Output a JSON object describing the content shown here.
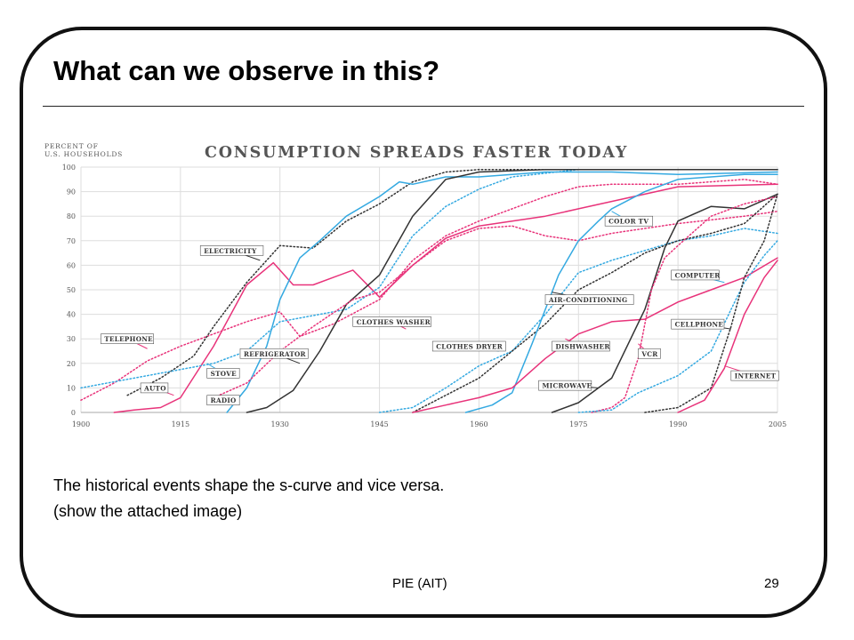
{
  "slide": {
    "title": "What can we observe in this?",
    "caption_line1": "The historical events shape the s-curve and vice versa.",
    "caption_line2": "(show the attached image)",
    "footer_source": "PIE (AIT)",
    "page_number": "29"
  },
  "chart_data": {
    "type": "line",
    "title": "CONSUMPTION SPREADS FASTER TODAY",
    "ylabel_line1": "PERCENT OF",
    "ylabel_line2": "U.S. HOUSEHOLDS",
    "xlim": [
      1900,
      2005
    ],
    "ylim": [
      0,
      100
    ],
    "x_ticks": [
      1900,
      1915,
      1930,
      1945,
      1960,
      1975,
      1990,
      2005
    ],
    "y_ticks": [
      0,
      10,
      20,
      30,
      40,
      50,
      60,
      70,
      80,
      90,
      100
    ],
    "grid": true,
    "colors": {
      "magenta": "#e8337a",
      "blue": "#34a9e1",
      "black": "#333333"
    },
    "series": [
      {
        "name": "TELEPHONE",
        "color": "#e8337a",
        "dash": true,
        "points": [
          [
            1900,
            5
          ],
          [
            1905,
            12
          ],
          [
            1910,
            21
          ],
          [
            1915,
            27
          ],
          [
            1920,
            32
          ],
          [
            1925,
            37
          ],
          [
            1930,
            41
          ],
          [
            1933,
            31
          ],
          [
            1938,
            36
          ],
          [
            1945,
            46
          ],
          [
            1950,
            62
          ],
          [
            1955,
            72
          ],
          [
            1960,
            78
          ],
          [
            1965,
            83
          ],
          [
            1970,
            88
          ],
          [
            1975,
            92
          ],
          [
            1980,
            93
          ],
          [
            1990,
            93
          ],
          [
            2000,
            95
          ],
          [
            2005,
            93
          ]
        ]
      },
      {
        "name": "ELECTRICITY",
        "color": "#333333",
        "dash": true,
        "points": [
          [
            1907,
            7
          ],
          [
            1912,
            14
          ],
          [
            1917,
            23
          ],
          [
            1920,
            35
          ],
          [
            1925,
            53
          ],
          [
            1930,
            68
          ],
          [
            1935,
            67
          ],
          [
            1940,
            78
          ],
          [
            1945,
            85
          ],
          [
            1950,
            94
          ],
          [
            1955,
            98
          ],
          [
            1960,
            99
          ],
          [
            2005,
            99
          ]
        ]
      },
      {
        "name": "AUTO",
        "color": "#e8337a",
        "dash": false,
        "points": [
          [
            1905,
            0
          ],
          [
            1908,
            1
          ],
          [
            1912,
            2
          ],
          [
            1915,
            6
          ],
          [
            1920,
            27
          ],
          [
            1925,
            52
          ],
          [
            1929,
            61
          ],
          [
            1932,
            52
          ],
          [
            1935,
            52
          ],
          [
            1938,
            55
          ],
          [
            1941,
            58
          ],
          [
            1945,
            47
          ],
          [
            1950,
            60
          ],
          [
            1955,
            71
          ],
          [
            1960,
            76
          ],
          [
            1965,
            78
          ],
          [
            1970,
            80
          ],
          [
            1975,
            83
          ],
          [
            1980,
            86
          ],
          [
            1990,
            92
          ],
          [
            2005,
            93
          ]
        ]
      },
      {
        "name": "STOVE",
        "color": "#34a9e1",
        "dash": true,
        "points": [
          [
            1900,
            10
          ],
          [
            1910,
            15
          ],
          [
            1920,
            20
          ],
          [
            1925,
            25
          ],
          [
            1930,
            37
          ],
          [
            1940,
            42
          ],
          [
            1945,
            51
          ],
          [
            1950,
            72
          ],
          [
            1955,
            84
          ],
          [
            1960,
            91
          ],
          [
            1965,
            96
          ],
          [
            1975,
            99
          ],
          [
            2005,
            99
          ]
        ]
      },
      {
        "name": "RADIO",
        "color": "#34a9e1",
        "dash": false,
        "points": [
          [
            1922,
            0
          ],
          [
            1925,
            10
          ],
          [
            1928,
            27
          ],
          [
            1930,
            46
          ],
          [
            1933,
            63
          ],
          [
            1936,
            70
          ],
          [
            1940,
            80
          ],
          [
            1945,
            88
          ],
          [
            1948,
            94
          ],
          [
            1950,
            93
          ],
          [
            1955,
            96
          ],
          [
            1960,
            96
          ],
          [
            1965,
            97
          ],
          [
            1970,
            98
          ],
          [
            1980,
            98
          ],
          [
            1990,
            97
          ],
          [
            2005,
            98
          ]
        ]
      },
      {
        "name": "REFRIGERATOR",
        "color": "#333333",
        "dash": false,
        "points": [
          [
            1925,
            0
          ],
          [
            1928,
            2
          ],
          [
            1932,
            9
          ],
          [
            1936,
            25
          ],
          [
            1940,
            44
          ],
          [
            1945,
            56
          ],
          [
            1950,
            80
          ],
          [
            1955,
            95
          ],
          [
            1960,
            98
          ],
          [
            1970,
            99
          ],
          [
            2005,
            99
          ]
        ]
      },
      {
        "name": "CLOTHES WASHER",
        "color": "#e8337a",
        "dash": true,
        "points": [
          [
            1920,
            6
          ],
          [
            1925,
            12
          ],
          [
            1930,
            25
          ],
          [
            1935,
            35
          ],
          [
            1941,
            46
          ],
          [
            1945,
            49
          ],
          [
            1950,
            60
          ],
          [
            1955,
            70
          ],
          [
            1960,
            75
          ],
          [
            1965,
            76
          ],
          [
            1970,
            72
          ],
          [
            1975,
            70
          ],
          [
            1980,
            73
          ],
          [
            1990,
            77
          ],
          [
            2000,
            80
          ],
          [
            2005,
            82
          ]
        ]
      },
      {
        "name": "CLOTHES DRYER",
        "color": "#34a9e1",
        "dash": true,
        "points": [
          [
            1945,
            0
          ],
          [
            1950,
            2
          ],
          [
            1955,
            10
          ],
          [
            1960,
            19
          ],
          [
            1965,
            25
          ],
          [
            1970,
            40
          ],
          [
            1975,
            57
          ],
          [
            1980,
            62
          ],
          [
            1985,
            66
          ],
          [
            1990,
            70
          ],
          [
            1995,
            72
          ],
          [
            2000,
            75
          ],
          [
            2005,
            73
          ]
        ]
      },
      {
        "name": "AIR-CONDITIONING",
        "color": "#333333",
        "dash": true,
        "points": [
          [
            1950,
            0
          ],
          [
            1955,
            7
          ],
          [
            1960,
            14
          ],
          [
            1965,
            25
          ],
          [
            1970,
            36
          ],
          [
            1975,
            50
          ],
          [
            1980,
            57
          ],
          [
            1985,
            65
          ],
          [
            1990,
            70
          ],
          [
            1995,
            73
          ],
          [
            2000,
            77
          ],
          [
            2005,
            89
          ]
        ]
      },
      {
        "name": "COLOR TV",
        "color": "#34a9e1",
        "dash": false,
        "points": [
          [
            1958,
            0
          ],
          [
            1962,
            3
          ],
          [
            1965,
            8
          ],
          [
            1968,
            28
          ],
          [
            1970,
            42
          ],
          [
            1972,
            56
          ],
          [
            1975,
            70
          ],
          [
            1978,
            78
          ],
          [
            1980,
            83
          ],
          [
            1985,
            90
          ],
          [
            1990,
            95
          ],
          [
            2000,
            97
          ],
          [
            2005,
            97
          ]
        ]
      },
      {
        "name": "DISHWASHER",
        "color": "#e8337a",
        "dash": false,
        "points": [
          [
            1950,
            0
          ],
          [
            1955,
            3
          ],
          [
            1960,
            6
          ],
          [
            1965,
            10
          ],
          [
            1970,
            22
          ],
          [
            1975,
            32
          ],
          [
            1980,
            37
          ],
          [
            1985,
            38
          ],
          [
            1990,
            45
          ],
          [
            1995,
            50
          ],
          [
            2000,
            55
          ],
          [
            2005,
            63
          ]
        ]
      },
      {
        "name": "MICROWAVE",
        "color": "#333333",
        "dash": false,
        "points": [
          [
            1971,
            0
          ],
          [
            1975,
            4
          ],
          [
            1978,
            10
          ],
          [
            1980,
            14
          ],
          [
            1985,
            42
          ],
          [
            1988,
            67
          ],
          [
            1990,
            78
          ],
          [
            1995,
            84
          ],
          [
            2000,
            83
          ],
          [
            2005,
            89
          ]
        ]
      },
      {
        "name": "VCR",
        "color": "#e8337a",
        "dash": true,
        "points": [
          [
            1977,
            0
          ],
          [
            1980,
            2
          ],
          [
            1982,
            6
          ],
          [
            1984,
            22
          ],
          [
            1986,
            50
          ],
          [
            1988,
            63
          ],
          [
            1990,
            68
          ],
          [
            1995,
            80
          ],
          [
            2000,
            85
          ],
          [
            2005,
            88
          ]
        ]
      },
      {
        "name": "COMPUTER",
        "color": "#34a9e1",
        "dash": true,
        "points": [
          [
            1975,
            0
          ],
          [
            1980,
            1
          ],
          [
            1984,
            8
          ],
          [
            1990,
            15
          ],
          [
            1995,
            25
          ],
          [
            1998,
            42
          ],
          [
            2000,
            53
          ],
          [
            2003,
            64
          ],
          [
            2005,
            70
          ]
        ]
      },
      {
        "name": "CELLPHONE",
        "color": "#333333",
        "dash": true,
        "points": [
          [
            1985,
            0
          ],
          [
            1990,
            2
          ],
          [
            1995,
            10
          ],
          [
            1998,
            35
          ],
          [
            2000,
            55
          ],
          [
            2003,
            70
          ],
          [
            2005,
            89
          ]
        ]
      },
      {
        "name": "INTERNET",
        "color": "#e8337a",
        "dash": false,
        "points": [
          [
            1990,
            0
          ],
          [
            1994,
            5
          ],
          [
            1997,
            18
          ],
          [
            2000,
            40
          ],
          [
            2003,
            55
          ],
          [
            2005,
            62
          ]
        ]
      }
    ],
    "annotations": [
      {
        "text": "TELEPHONE",
        "x": 1903,
        "y": 30,
        "target": [
          1910,
          26
        ]
      },
      {
        "text": "ELECTRICITY",
        "x": 1918,
        "y": 66,
        "target": [
          1927,
          62
        ]
      },
      {
        "text": "AUTO",
        "x": 1909,
        "y": 10,
        "target": [
          1914,
          7
        ]
      },
      {
        "text": "STOVE",
        "x": 1919,
        "y": 16,
        "target": [
          1919,
          20
        ]
      },
      {
        "text": "RADIO",
        "x": 1919,
        "y": 5,
        "target": [
          1923,
          3
        ]
      },
      {
        "text": "REFRIGERATOR",
        "x": 1924,
        "y": 24,
        "target": [
          1933,
          20
        ]
      },
      {
        "text": "CLOTHES WASHER",
        "x": 1941,
        "y": 37,
        "target": [
          1949,
          34
        ]
      },
      {
        "text": "CLOTHES DRYER",
        "x": 1953,
        "y": 27,
        "target": [
          1963,
          25
        ]
      },
      {
        "text": "AIR-CONDITIONING",
        "x": 1970,
        "y": 46,
        "target": [
          1971,
          49
        ]
      },
      {
        "text": "COLOR TV",
        "x": 1979,
        "y": 78,
        "target": [
          1980,
          82
        ]
      },
      {
        "text": "DISHWASHER",
        "x": 1971,
        "y": 27,
        "target": [
          1973,
          30
        ]
      },
      {
        "text": "MICROWAVE",
        "x": 1969,
        "y": 11,
        "target": [
          1978,
          10
        ]
      },
      {
        "text": "VCR",
        "x": 1984,
        "y": 24,
        "target": [
          1984,
          28
        ]
      },
      {
        "text": "COMPUTER",
        "x": 1989,
        "y": 56,
        "target": [
          1997,
          53
        ]
      },
      {
        "text": "CELLPHONE",
        "x": 1989,
        "y": 36,
        "target": [
          1998,
          34
        ]
      },
      {
        "text": "INTERNET",
        "x": 1998,
        "y": 15,
        "target": [
          1997,
          19
        ]
      }
    ]
  }
}
